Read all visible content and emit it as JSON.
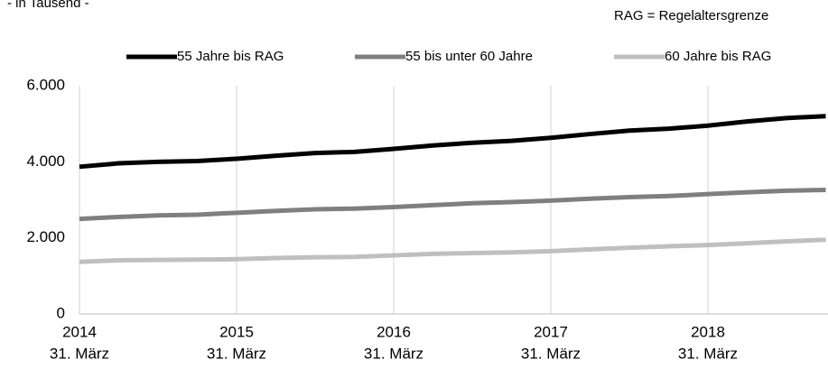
{
  "chart_data": {
    "type": "line",
    "subtitle": "- in Tausend -",
    "annotation": "RAG = Regelaltersgrenze",
    "categories": [
      "2014",
      null,
      null,
      null,
      "2015",
      null,
      null,
      null,
      "2016",
      null,
      null,
      null,
      "2017",
      null,
      null,
      null,
      "2018",
      null,
      null,
      null
    ],
    "category_sublabels": [
      "31. März",
      null,
      null,
      null,
      "31. März",
      null,
      null,
      null,
      "31. März",
      null,
      null,
      null,
      "31. März",
      null,
      null,
      null,
      "31. März",
      null,
      null,
      null
    ],
    "series": [
      {
        "name": "55 Jahre bis RAG",
        "color": "#000000",
        "values": [
          3870,
          3960,
          4000,
          4020,
          4080,
          4160,
          4230,
          4260,
          4340,
          4430,
          4500,
          4550,
          4630,
          4730,
          4820,
          4870,
          4950,
          5060,
          5150,
          5200
        ]
      },
      {
        "name": "55 bis unter 60 Jahre",
        "color": "#7f7f7f",
        "values": [
          2500,
          2550,
          2590,
          2610,
          2660,
          2710,
          2750,
          2770,
          2810,
          2860,
          2910,
          2940,
          2980,
          3030,
          3070,
          3100,
          3150,
          3200,
          3240,
          3260
        ]
      },
      {
        "name": "60 Jahre bis RAG",
        "color": "#bfbfbf",
        "values": [
          1370,
          1410,
          1420,
          1430,
          1440,
          1470,
          1490,
          1500,
          1540,
          1580,
          1600,
          1620,
          1650,
          1700,
          1740,
          1780,
          1810,
          1860,
          1910,
          1950
        ]
      }
    ],
    "ylim": [
      0,
      6000
    ],
    "yticks": [
      0,
      {
        "value": 2000,
        "label": "2.000"
      },
      {
        "value": 4000,
        "label": "4.000"
      },
      {
        "value": 6000,
        "label": "6.000"
      }
    ],
    "grid": "x",
    "legend": "top"
  }
}
